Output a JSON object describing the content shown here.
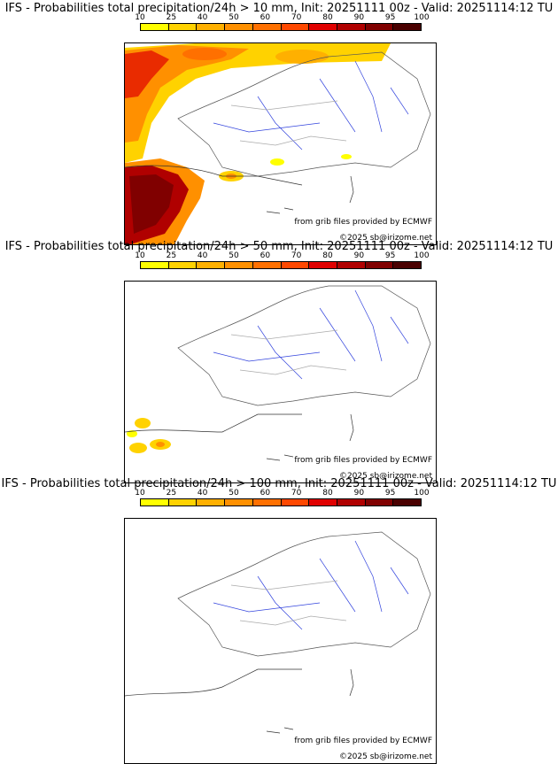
{
  "legend": {
    "ticks": [
      "10",
      "25",
      "40",
      "50",
      "60",
      "70",
      "80",
      "90",
      "95",
      "100"
    ],
    "colors": [
      "#ffff00",
      "#ffd200",
      "#ffb000",
      "#ff9000",
      "#ff7000",
      "#ff4800",
      "#e00000",
      "#b00000",
      "#800000",
      "#4a0000"
    ]
  },
  "credits": {
    "source": "from grib files provided by ECMWF",
    "copyright": "©2025 sb@irizome.net"
  },
  "panels": [
    {
      "title": "IFS - Probabilities total precipitation/24h > 10 mm, Init: 20251111 00z - Valid: 20251114:12 TU"
    },
    {
      "title": "IFS - Probabilities total precipitation/24h > 50 mm, Init: 20251111 00z - Valid: 20251114:12 TU"
    },
    {
      "title": "IFS - Probabilities total precipitation/24h > 100 mm, Init: 20251111 00z - Valid: 20251114:12 TU"
    }
  ]
}
